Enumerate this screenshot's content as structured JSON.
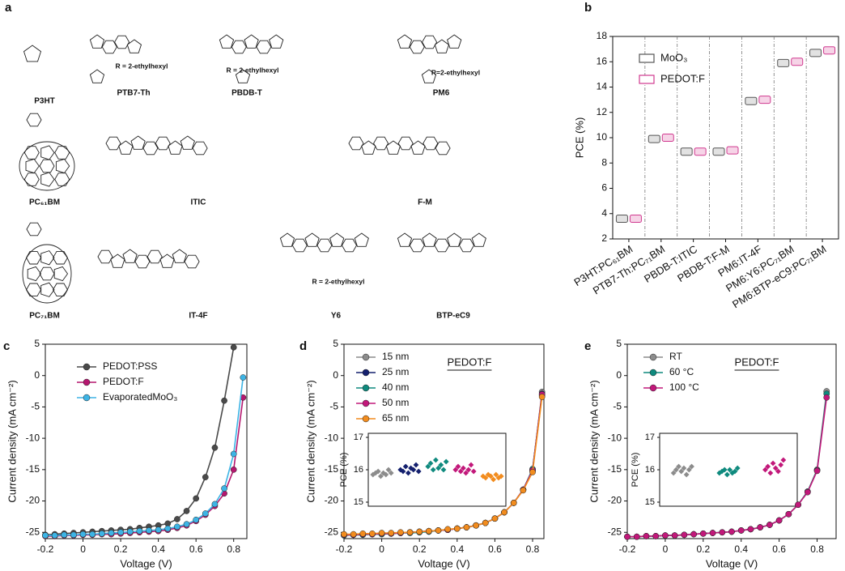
{
  "structures": {
    "panel": "a",
    "molecules": [
      "P3HT",
      "PTB7-Th",
      "PBDB-T",
      "PM6",
      "PC₆₁BM",
      "ITIC",
      "F-M",
      "PC₇₁BM",
      "IT-4F",
      "Y6",
      "BTP-eC9"
    ],
    "notes": [
      "R = 2-ethylhexyl",
      "R = 2-ethylhexyl",
      "R=2-ethylhexyl",
      "R = 2-ethylhexyl"
    ]
  },
  "chart_data": [
    {
      "type": "dot",
      "panel": "b",
      "ylabel": "PCE (%)",
      "categories": [
        "P3HT:PC₆₁BM",
        "PTB7-Th:PC₇₁BM",
        "PBDB-T:ITIC",
        "PBDB-T:F-M",
        "PM6:IT-4F",
        "PM6:Y6:PC₇₁BM",
        "PM6:BTP-eC9:PC₇₁BM"
      ],
      "series": [
        {
          "name": "MoO₃",
          "color": "#555555",
          "values": [
            3.6,
            9.9,
            8.9,
            8.9,
            12.9,
            15.9,
            16.7
          ]
        },
        {
          "name": "PEDOT:F",
          "color": "#d0398f",
          "values": [
            3.6,
            10.0,
            8.9,
            9.0,
            13.0,
            16.0,
            16.9
          ]
        }
      ],
      "ylim": [
        2,
        18
      ],
      "yticks": [
        2,
        4,
        6,
        8,
        10,
        12,
        14,
        16,
        18
      ]
    },
    {
      "type": "line",
      "panel": "c",
      "xlabel": "Voltage (V)",
      "ylabel": "Current density (mA cm⁻²)",
      "x": [
        -0.2,
        -0.15,
        -0.1,
        -0.05,
        0,
        0.05,
        0.1,
        0.15,
        0.2,
        0.25,
        0.3,
        0.35,
        0.4,
        0.45,
        0.5,
        0.55,
        0.6,
        0.65,
        0.7,
        0.75,
        0.8,
        0.85
      ],
      "series": [
        {
          "name": "PEDOT:PSS",
          "color": "#4a4a4a",
          "values": [
            -25.4,
            -25.3,
            -25.2,
            -25.1,
            -25.0,
            -24.9,
            -24.8,
            -24.7,
            -24.6,
            -24.5,
            -24.3,
            -24.1,
            -23.9,
            -23.6,
            -22.9,
            -21.6,
            -19.6,
            -16.2,
            -11.5,
            -4.0,
            4.5,
            null
          ]
        },
        {
          "name": "PEDOT:F",
          "color": "#b5176f",
          "values": [
            -25.6,
            -25.6,
            -25.5,
            -25.5,
            -25.4,
            -25.4,
            -25.3,
            -25.3,
            -25.2,
            -25.1,
            -25.0,
            -24.9,
            -24.8,
            -24.6,
            -24.3,
            -23.9,
            -23.2,
            -22.2,
            -20.8,
            -18.8,
            -15.0,
            -3.5
          ]
        },
        {
          "name": "EvaporatedMoO₃",
          "color": "#3db4e5",
          "values": [
            -25.5,
            -25.5,
            -25.4,
            -25.4,
            -25.3,
            -25.3,
            -25.2,
            -25.1,
            -25.0,
            -24.9,
            -24.8,
            -24.7,
            -24.6,
            -24.4,
            -24.1,
            -23.7,
            -23.0,
            -22.0,
            -20.5,
            -18.0,
            -12.5,
            -0.3
          ]
        }
      ],
      "xlim": [
        -0.2,
        0.87
      ],
      "xticks": [
        -0.2,
        0,
        0.2,
        0.4,
        0.6,
        0.8
      ],
      "ylim": [
        -26,
        5
      ],
      "yticks": [
        -25,
        -20,
        -15,
        -10,
        -5,
        0,
        5
      ]
    },
    {
      "type": "line",
      "panel": "d",
      "xlabel": "Voltage (V)",
      "ylabel": "Current density (mA cm⁻²)",
      "annotation": "PEDOT:F",
      "x": [
        -0.2,
        -0.15,
        -0.1,
        -0.05,
        0,
        0.05,
        0.1,
        0.15,
        0.2,
        0.25,
        0.3,
        0.35,
        0.4,
        0.45,
        0.5,
        0.55,
        0.6,
        0.65,
        0.7,
        0.75,
        0.8,
        0.85
      ],
      "series": [
        {
          "name": "15 nm",
          "color": "#8c8c8c",
          "values": [
            -25.4,
            -25.4,
            -25.3,
            -25.3,
            -25.2,
            -25.2,
            -25.1,
            -25.0,
            -24.9,
            -24.8,
            -24.7,
            -24.6,
            -24.4,
            -24.2,
            -23.9,
            -23.5,
            -22.8,
            -21.8,
            -20.3,
            -18.2,
            -15.2,
            -2.6
          ]
        },
        {
          "name": "25 nm",
          "color": "#14206e",
          "values": [
            -25.4,
            -25.4,
            -25.3,
            -25.3,
            -25.2,
            -25.2,
            -25.1,
            -25.0,
            -24.9,
            -24.8,
            -24.7,
            -24.6,
            -24.4,
            -24.2,
            -23.9,
            -23.5,
            -22.8,
            -21.8,
            -20.3,
            -18.2,
            -15.0,
            -2.9
          ]
        },
        {
          "name": "40 nm",
          "color": "#0f8a7e",
          "values": [
            -25.5,
            -25.4,
            -25.4,
            -25.3,
            -25.3,
            -25.2,
            -25.1,
            -25.1,
            -25.0,
            -24.9,
            -24.7,
            -24.6,
            -24.4,
            -24.2,
            -23.9,
            -23.5,
            -22.8,
            -21.8,
            -20.3,
            -18.2,
            -14.9,
            -3.2
          ]
        },
        {
          "name": "50 nm",
          "color": "#c2187a",
          "values": [
            -25.4,
            -25.4,
            -25.3,
            -25.3,
            -25.2,
            -25.2,
            -25.1,
            -25.0,
            -24.9,
            -24.8,
            -24.7,
            -24.6,
            -24.4,
            -24.2,
            -23.9,
            -23.5,
            -22.8,
            -21.8,
            -20.3,
            -18.2,
            -15.1,
            -3.0
          ]
        },
        {
          "name": "65 nm",
          "color": "#f28c1e",
          "values": [
            -25.3,
            -25.3,
            -25.2,
            -25.2,
            -25.1,
            -25.1,
            -25.0,
            -25.0,
            -24.9,
            -24.8,
            -24.7,
            -24.5,
            -24.4,
            -24.2,
            -23.9,
            -23.5,
            -22.8,
            -21.8,
            -20.3,
            -18.3,
            -15.4,
            -3.4
          ]
        }
      ],
      "xlim": [
        -0.2,
        0.86
      ],
      "xticks": [
        -0.2,
        0,
        0.2,
        0.4,
        0.6,
        0.8
      ],
      "ylim": [
        -26,
        5
      ],
      "yticks": [
        -25,
        -20,
        -15,
        -10,
        -5,
        0,
        5
      ],
      "inset": {
        "ylabel": "PCE (%)",
        "ylim": [
          15,
          17
        ],
        "yticks": [
          15,
          16,
          17
        ],
        "values": [
          [
            15.85,
            15.9,
            15.95,
            15.8,
            15.9,
            15.85,
            16.0,
            15.9
          ],
          [
            16.0,
            15.95,
            16.1,
            15.9,
            16.05,
            16.0,
            16.15,
            15.95
          ],
          [
            16.1,
            16.2,
            16.0,
            16.3,
            16.05,
            16.15,
            16.0,
            16.25
          ],
          [
            16.0,
            16.1,
            15.95,
            16.05,
            15.9,
            16.0,
            16.15,
            15.95
          ],
          [
            15.8,
            15.75,
            15.85,
            15.8,
            15.7,
            15.85,
            15.75,
            15.8
          ]
        ]
      }
    },
    {
      "type": "line",
      "panel": "e",
      "xlabel": "Voltage (V)",
      "ylabel": "Current density (mA cm⁻²)",
      "annotation": "PEDOT:F",
      "x": [
        -0.2,
        -0.15,
        -0.1,
        -0.05,
        0,
        0.05,
        0.1,
        0.15,
        0.2,
        0.25,
        0.3,
        0.35,
        0.4,
        0.45,
        0.5,
        0.55,
        0.6,
        0.65,
        0.7,
        0.75,
        0.8,
        0.85
      ],
      "series": [
        {
          "name": "RT",
          "color": "#8c8c8c",
          "values": [
            -25.7,
            -25.7,
            -25.6,
            -25.6,
            -25.5,
            -25.5,
            -25.4,
            -25.3,
            -25.2,
            -25.1,
            -25.0,
            -24.9,
            -24.7,
            -24.5,
            -24.2,
            -23.8,
            -23.1,
            -22.1,
            -20.6,
            -18.5,
            -15.0,
            -2.5
          ]
        },
        {
          "name": "60 °C",
          "color": "#0f8a7e",
          "values": [
            -25.7,
            -25.7,
            -25.6,
            -25.6,
            -25.5,
            -25.5,
            -25.4,
            -25.3,
            -25.2,
            -25.1,
            -25.0,
            -24.9,
            -24.7,
            -24.5,
            -24.2,
            -23.8,
            -23.1,
            -22.1,
            -20.6,
            -18.5,
            -15.1,
            -2.9
          ]
        },
        {
          "name": "100 °C",
          "color": "#c2187a",
          "values": [
            -25.7,
            -25.7,
            -25.6,
            -25.6,
            -25.5,
            -25.5,
            -25.4,
            -25.3,
            -25.2,
            -25.1,
            -25.0,
            -24.9,
            -24.7,
            -24.5,
            -24.2,
            -23.8,
            -23.1,
            -22.1,
            -20.6,
            -18.6,
            -15.2,
            -3.5
          ]
        }
      ],
      "xlim": [
        -0.2,
        0.9
      ],
      "xticks": [
        -0.2,
        0,
        0.2,
        0.4,
        0.6,
        0.8
      ],
      "ylim": [
        -26,
        5
      ],
      "yticks": [
        -25,
        -20,
        -15,
        -10,
        -5,
        0,
        5
      ],
      "inset": {
        "ylabel": "PCE (%)",
        "ylim": [
          15,
          17
        ],
        "yticks": [
          15,
          16,
          17
        ],
        "values": [
          [
            15.9,
            16.0,
            16.1,
            15.95,
            16.05,
            15.85,
            16.0,
            16.1
          ],
          [
            15.9,
            15.95,
            16.0,
            15.85,
            16.0,
            15.9,
            15.95,
            16.05
          ],
          [
            16.0,
            16.1,
            15.9,
            16.2,
            16.05,
            15.95,
            16.15,
            16.3
          ]
        ]
      }
    }
  ]
}
